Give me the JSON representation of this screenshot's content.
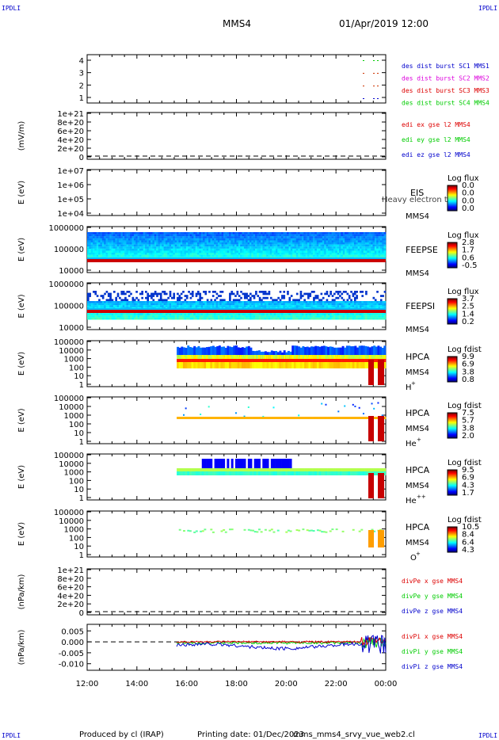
{
  "header": {
    "corner_tl": "IPDLI",
    "corner_tr": "IPDLI",
    "corner_bl": "IPDLI",
    "corner_br": "IPDLI",
    "spacecraft": "MMS4",
    "datetime": "01/Apr/2019 12:00"
  },
  "footer": {
    "produced_by": "Produced by cl (IRAP)",
    "printing_date": "Printing date: 01/Dec/2023",
    "script": "mms_mms4_srvy_vue_web2.cl"
  },
  "colors": {
    "red": "#dd0000",
    "green": "#00cc00",
    "blue": "#0000cc",
    "magenta": "#dd00dd",
    "orange_red": "#cc3300"
  },
  "chart_data": {
    "type": "heatmap",
    "x_ticks": [
      "12:00",
      "14:00",
      "16:00",
      "18:00",
      "20:00",
      "22:00",
      "00:00"
    ],
    "panels": [
      {
        "id": "burst",
        "ylabel": "",
        "yticks": [
          "4",
          "3",
          "2",
          "1"
        ],
        "legend": [
          {
            "label": "des dist burst SC1 MMS1",
            "color": "#0000cc"
          },
          {
            "label": "des dist burst SC2 MMS2",
            "color": "#dd00dd"
          },
          {
            "label": "des dist burst SC3 MMS3",
            "color": "#dd0000"
          },
          {
            "label": "des dist burst SC4 MMS4",
            "color": "#00cc00"
          }
        ]
      },
      {
        "id": "edi",
        "ylabel": "(mV/m)",
        "yticks": [
          "1e+21",
          "8e+20",
          "6e+20",
          "4e+20",
          "2e+20",
          "0"
        ],
        "legend": [
          {
            "label": "edi ex gse l2 MMS4",
            "color": "#dd0000"
          },
          {
            "label": "edi ey gse l2 MMS4",
            "color": "#00cc00"
          },
          {
            "label": "edi ez gse l2 MMS4",
            "color": "#0000cc"
          }
        ]
      },
      {
        "id": "eis",
        "ylabel": "E (eV)",
        "yticks": [
          "1e+07",
          "1e+06",
          "1e+05",
          "1e+04"
        ],
        "instrument": "EIS",
        "instrument2": "MMS4",
        "overlay": "Heavy electron to",
        "colorbar_title": "Log flux",
        "colorbar_ticks": [
          "0.0",
          "0.0",
          "0.0",
          "0.0"
        ]
      },
      {
        "id": "feepse",
        "ylabel": "E (eV)",
        "yticks": [
          "1000000",
          "100000",
          "10000"
        ],
        "instrument": "FEEPSE",
        "instrument2": "MMS4",
        "colorbar_title": "Log flux",
        "colorbar_ticks": [
          "2.8",
          "1.7",
          "0.6",
          "-0.5"
        ]
      },
      {
        "id": "feepsi",
        "ylabel": "E (eV)",
        "yticks": [
          "1000000",
          "100000",
          "10000"
        ],
        "instrument": "FEEPSI",
        "instrument2": "MMS4",
        "colorbar_title": "Log flux",
        "colorbar_ticks": [
          "3.7",
          "2.5",
          "1.4",
          "0.2"
        ]
      },
      {
        "id": "hpca_h",
        "ylabel": "E (eV)",
        "yticks": [
          "100000",
          "10000",
          "1000",
          "100",
          "10",
          "1"
        ],
        "instrument": "HPCA",
        "instrument2": "MMS4",
        "species": "H",
        "species_sup": "+",
        "colorbar_title": "Log fdist",
        "colorbar_ticks": [
          "9.9",
          "6.9",
          "3.8",
          "0.8"
        ]
      },
      {
        "id": "hpca_he",
        "ylabel": "E (eV)",
        "yticks": [
          "100000",
          "10000",
          "1000",
          "100",
          "10",
          "1"
        ],
        "instrument": "HPCA",
        "instrument2": "MMS4",
        "species": "He",
        "species_sup": "+",
        "colorbar_title": "Log fdist",
        "colorbar_ticks": [
          "7.5",
          "5.7",
          "3.8",
          "2.0"
        ]
      },
      {
        "id": "hpca_hepp",
        "ylabel": "E (eV)",
        "yticks": [
          "100000",
          "10000",
          "1000",
          "100",
          "10",
          "1"
        ],
        "instrument": "HPCA",
        "instrument2": "MMS4",
        "species": "He",
        "species_sup": "++",
        "colorbar_title": "Log fdist",
        "colorbar_ticks": [
          "9.5",
          "6.9",
          "4.3",
          "1.7"
        ]
      },
      {
        "id": "hpca_o",
        "ylabel": "E (eV)",
        "yticks": [
          "100000",
          "10000",
          "1000",
          "100",
          "10",
          "1"
        ],
        "instrument": "HPCA",
        "instrument2": "MMS4",
        "species": "O",
        "species_sup": "+",
        "colorbar_title": "Log fdist",
        "colorbar_ticks": [
          "10.5",
          "8.4",
          "6.4",
          "4.3"
        ]
      },
      {
        "id": "divpe",
        "ylabel": "(nPa/km)",
        "yticks": [
          "1e+21",
          "8e+20",
          "6e+20",
          "4e+20",
          "2e+20",
          "0"
        ],
        "legend": [
          {
            "label": "divPe x gse MMS4",
            "color": "#dd0000"
          },
          {
            "label": "divPe y gse MMS4",
            "color": "#00cc00"
          },
          {
            "label": "divPe z gse MMS4",
            "color": "#0000cc"
          }
        ]
      },
      {
        "id": "divpi",
        "ylabel": "(nPa/km)",
        "yticks": [
          "0.005",
          "0.000",
          "-0.005",
          "-0.010"
        ],
        "ylim": [
          -0.013,
          0.008
        ],
        "legend": [
          {
            "label": "divPi x gse MMS4",
            "color": "#dd0000"
          },
          {
            "label": "divPi y gse MMS4",
            "color": "#00cc00"
          },
          {
            "label": "divPi z gse MMS4",
            "color": "#0000cc"
          }
        ]
      }
    ]
  }
}
